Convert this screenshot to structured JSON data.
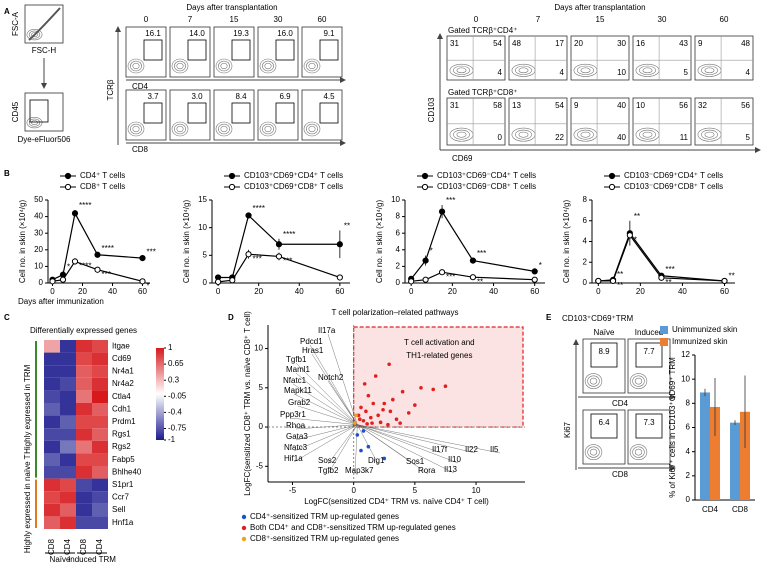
{
  "panel_labels": [
    "A",
    "B",
    "C",
    "D",
    "E"
  ],
  "panel_a": {
    "gating": {
      "fsc_y": "FSC-A",
      "fsc_x": "FSC-H",
      "cd45_y": "CD45",
      "cd45_x": "Dye-eFluor506"
    },
    "cd4_cd8": {
      "title": "Days  after transplantation",
      "days": [
        0,
        7,
        15,
        30,
        60
      ],
      "y_label": "TCRβ",
      "rows": [
        {
          "label": "CD4",
          "gates": [
            "16.1",
            "14.0",
            "19.3",
            "16.0",
            "9.1"
          ]
        },
        {
          "label": "CD8",
          "gates": [
            "3.7",
            "3.0",
            "8.4",
            "6.9",
            "4.5"
          ]
        }
      ]
    },
    "cd103_cd69": {
      "title": "Days  after transplantation",
      "days": [
        0,
        7,
        15,
        30,
        60
      ],
      "y_label": "CD103",
      "x_label": "CD69",
      "rows": [
        {
          "label": "Gated TCRβ⁺CD4⁺",
          "quadrants": [
            [
              "31",
              "54",
              "4"
            ],
            [
              "48",
              "17",
              "4"
            ],
            [
              "20",
              "30",
              "10"
            ],
            [
              "16",
              "43",
              "5"
            ],
            [
              "9",
              "48",
              "4"
            ]
          ]
        },
        {
          "label": "Gated TCRβ⁺CD8⁺",
          "quadrants": [
            [
              "31",
              "58",
              "0"
            ],
            [
              "13",
              "54",
              "22"
            ],
            [
              "9",
              "40",
              "40"
            ],
            [
              "10",
              "56",
              "11"
            ],
            [
              "32",
              "56",
              "5"
            ]
          ]
        }
      ]
    }
  },
  "panel_e_flow": {
    "title": "CD103⁺CD69⁺TRM",
    "columns": [
      "Naïve",
      "Induced"
    ],
    "y_label": "Ki67",
    "rows": [
      {
        "label": "CD4",
        "gates": [
          "8.9",
          "7.7"
        ]
      },
      {
        "label": "CD8",
        "gates": [
          "6.4",
          "7.3"
        ]
      }
    ]
  },
  "chart_data": [
    {
      "type": "line",
      "y_label": "Cell no. in skin (×10⁴/g)",
      "x_label": "Days after immunization",
      "xlim": [
        -3,
        65
      ],
      "xticks": [
        0,
        20,
        40,
        60
      ],
      "ylim": [
        0,
        50
      ],
      "yticks": [
        0,
        10,
        20,
        30,
        40,
        50
      ],
      "series": [
        {
          "name": "CD4⁺ T cells",
          "color": "#000000",
          "marker": "filled",
          "x": [
            0,
            7,
            15,
            30,
            60
          ],
          "values": [
            2,
            5,
            42,
            17,
            15
          ],
          "errors": [
            0.5,
            2,
            2,
            1,
            1
          ],
          "significance": [
            null,
            "*",
            "****",
            "****",
            "***"
          ]
        },
        {
          "name": "CD8⁺ T cells",
          "color": "#000000",
          "marker": "open",
          "x": [
            0,
            7,
            15,
            30,
            60
          ],
          "values": [
            1,
            2,
            13,
            8,
            1
          ],
          "errors": [
            0.3,
            0.5,
            2,
            1,
            0.5
          ],
          "significance": [
            null,
            null,
            "****",
            "***",
            "*"
          ]
        }
      ]
    },
    {
      "type": "line",
      "y_label": "Cell no. in skin (×10⁴/g)",
      "xlim": [
        -3,
        65
      ],
      "xticks": [
        0,
        20,
        40,
        60
      ],
      "ylim": [
        0,
        15
      ],
      "yticks": [
        0,
        5,
        10,
        15
      ],
      "series": [
        {
          "name": "CD103⁺CD69⁺CD4⁺ T cells",
          "color": "#000000",
          "marker": "filled",
          "x": [
            0,
            7,
            15,
            30,
            60
          ],
          "values": [
            1,
            1,
            12.2,
            7,
            7
          ],
          "errors": [
            0.3,
            0.3,
            0.5,
            1,
            2.5
          ],
          "significance": [
            null,
            null,
            "****",
            "****",
            "**"
          ]
        },
        {
          "name": "CD103⁺CD69⁺CD8⁺ T cells",
          "color": "#000000",
          "marker": "open",
          "x": [
            0,
            7,
            15,
            30,
            60
          ],
          "values": [
            0.2,
            0.5,
            5.2,
            4.8,
            1
          ],
          "errors": [
            0.1,
            0.2,
            0.8,
            0.7,
            0.3
          ],
          "significance": [
            null,
            null,
            "***",
            "***",
            null
          ]
        }
      ]
    },
    {
      "type": "line",
      "y_label": "Cell no. in skin (×10⁴/g)",
      "xlim": [
        -3,
        65
      ],
      "xticks": [
        0,
        20,
        40,
        60
      ],
      "ylim": [
        0,
        10
      ],
      "yticks": [
        0,
        2,
        4,
        6,
        8,
        10
      ],
      "series": [
        {
          "name": "CD103⁺CD69⁻CD4⁺ T cells",
          "color": "#000000",
          "marker": "filled",
          "x": [
            0,
            7,
            15,
            30,
            60
          ],
          "values": [
            0.5,
            2.7,
            8.6,
            2.7,
            1.4
          ],
          "errors": [
            0.1,
            0.6,
            0.8,
            0.3,
            0.2
          ],
          "significance": [
            null,
            "*",
            "***",
            "***",
            "*"
          ]
        },
        {
          "name": "CD103⁺CD69⁻CD8⁺ T cells",
          "color": "#000000",
          "marker": "open",
          "x": [
            0,
            7,
            15,
            30,
            60
          ],
          "values": [
            0.2,
            0.4,
            1.3,
            0.7,
            0.4
          ],
          "errors": [
            0.05,
            0.1,
            0.2,
            0.2,
            0.1
          ],
          "significance": [
            null,
            null,
            "***",
            "**",
            null
          ]
        }
      ]
    },
    {
      "type": "line",
      "y_label": "Cell no. in skin (×10⁴/g)",
      "xlim": [
        -3,
        65
      ],
      "xticks": [
        0,
        20,
        40,
        60
      ],
      "ylim": [
        0,
        8
      ],
      "yticks": [
        0,
        2,
        4,
        6,
        8
      ],
      "series": [
        {
          "name": "CD103⁻CD69⁺CD4⁺ T cells",
          "color": "#000000",
          "marker": "filled",
          "x": [
            0,
            7,
            15,
            30,
            60
          ],
          "values": [
            0.2,
            0.3,
            4.8,
            0.7,
            0.2
          ],
          "errors": [
            0.05,
            0.1,
            1.2,
            0.2,
            0.05
          ],
          "significance": [
            null,
            "**",
            "**",
            "***",
            "**"
          ]
        },
        {
          "name": "CD103⁻CD69⁺CD8⁺ T cells",
          "color": "#000000",
          "marker": "open",
          "x": [
            0,
            7,
            15,
            30,
            60
          ],
          "values": [
            0.2,
            0.2,
            4.6,
            0.5,
            0.2
          ],
          "errors": [
            0.05,
            0.05,
            0.4,
            0.1,
            0.05
          ],
          "significance": [
            null,
            "**",
            "*",
            "**",
            null
          ]
        }
      ]
    },
    {
      "type": "heatmap",
      "title": "Differentially  expressed genes",
      "columns": [
        "CD8",
        "CD4",
        "CD8",
        "CD4"
      ],
      "column_groups": [
        "Naïve",
        "Induced TRM"
      ],
      "zlim": [
        -1,
        1
      ],
      "zticks": [
        1,
        0.65,
        0.3,
        -0.05,
        -0.4,
        -0.75,
        -1
      ],
      "zcolors": [
        "#1c1c8f",
        "#ffffff",
        "#d7191c"
      ],
      "row_groups": [
        {
          "label": "Highly expressed in TRM",
          "color": "#3a8a2a",
          "rows": [
            "Itgae",
            "Cd69",
            "Nr4a1",
            "Nr4a2",
            "Ctla4",
            "Cdh1",
            "Prdm1",
            "Rgs1",
            "Rgs2",
            "Fabp5",
            "Bhlhe40"
          ],
          "values": [
            [
              0.4,
              -0.9,
              0.9,
              0.8
            ],
            [
              -0.9,
              -0.9,
              0.8,
              0.9
            ],
            [
              -0.9,
              -0.9,
              0.7,
              0.8
            ],
            [
              -0.9,
              -0.8,
              0.7,
              0.9
            ],
            [
              -0.8,
              -0.9,
              0.6,
              1
            ],
            [
              -0.7,
              -0.9,
              0.9,
              0.7
            ],
            [
              -0.9,
              -0.7,
              0.8,
              0.8
            ],
            [
              -0.8,
              -0.8,
              0.9,
              0.7
            ],
            [
              -0.9,
              -0.6,
              0.6,
              0.9
            ],
            [
              -0.7,
              -0.9,
              0.8,
              0.8
            ],
            [
              -0.8,
              -0.8,
              0.9,
              0.7
            ]
          ]
        },
        {
          "label": "Highly expressed in naïve T",
          "color": "#e07b20",
          "rows": [
            "S1pr1",
            "Ccr7",
            "Sell",
            "Hnf1a"
          ],
          "values": [
            [
              0.9,
              0.8,
              -0.8,
              -0.9
            ],
            [
              0.8,
              0.9,
              -0.9,
              -0.8
            ],
            [
              0.9,
              0.7,
              -0.9,
              -0.7
            ],
            [
              0.7,
              0.9,
              -0.8,
              -0.8
            ]
          ]
        }
      ]
    },
    {
      "type": "scatter",
      "title": "T cell polarization–related pathways",
      "x_label": "LogFC(sensitized CD4⁺ TRM vs. naïve CD4⁺ T cell)",
      "y_label": "LogFC(sensitized CD8⁺ TRM vs. naïve CD8⁺ T cell)",
      "xlim": [
        -7,
        14
      ],
      "xticks": [
        -5,
        0,
        5,
        10
      ],
      "ylim": [
        -7,
        13
      ],
      "yticks": [
        -5,
        0,
        5,
        10
      ],
      "box_label": [
        "T cell activation and",
        "TH1-related genes"
      ],
      "gene_labels": [
        "Il17a",
        "Pdcd1",
        "Hras1",
        "Tgfb1",
        "Maml1",
        "Nfatc1",
        "Notch2",
        "Mapk11",
        "Grab2",
        "Ppp3r1",
        "Rhoa",
        "Gata3",
        "Nfatc3",
        "Hif1a",
        "Sos2",
        "Tgfb2",
        "Dig1",
        "Map3k7",
        "Il17f",
        "Il10",
        "Il13",
        "Sos1",
        "Rora",
        "Il22",
        "Il5"
      ],
      "series": [
        {
          "name": "CD4⁺-sensitized TRM up-regulated genes",
          "color": "#1f4fd1",
          "x": [
            0.3,
            0.6,
            1.2,
            2.5,
            0.8
          ],
          "values": [
            -1,
            -3,
            -2.5,
            -4,
            -0.5
          ]
        },
        {
          "name": "Both CD4⁺ and CD8⁺-sensitized TRM up-regulated genes",
          "color": "#e02020",
          "x": [
            0.5,
            1,
            1.5,
            2,
            2.5,
            3,
            1.2,
            0.8,
            2.2,
            3.5,
            4,
            1.8,
            0.6,
            2.8,
            1.4,
            5.5,
            6.5,
            3.2,
            0.9,
            2.4,
            1.1,
            4.5,
            7.5,
            1.6,
            2.9,
            0.4,
            3.8,
            5
          ],
          "values": [
            1,
            2,
            0.5,
            1.5,
            3,
            2,
            4,
            0.8,
            0.6,
            1,
            4.5,
            6.5,
            2.5,
            0.3,
            1.2,
            5,
            4.8,
            3.5,
            5.5,
            2.2,
            0.4,
            1.8,
            5.2,
            3,
            8,
            1.5,
            0.5,
            2.8
          ]
        },
        {
          "name": "CD8⁺-sensitized TRM up-regulated genes",
          "color": "#f0a020",
          "x": [
            0.1,
            0.2
          ],
          "values": [
            0.5,
            1.5
          ]
        }
      ]
    },
    {
      "type": "bar",
      "y_label": "% of Ki67⁺ cells in CD103⁺CD69⁺ TRM",
      "categories": [
        "CD4",
        "CD8"
      ],
      "ylim": [
        0,
        12
      ],
      "yticks": [
        0,
        2,
        4,
        6,
        8,
        10,
        12
      ],
      "legend": "top",
      "series": [
        {
          "name": "Unimmunized skin",
          "color": "#5b9bd5",
          "values": [
            8.9,
            6.4
          ],
          "errors": [
            0.3,
            0.2
          ]
        },
        {
          "name": "Immunized skin",
          "color": "#ed7d31",
          "values": [
            7.7,
            7.3
          ],
          "errors": [
            2.4,
            3.0
          ]
        }
      ]
    }
  ]
}
